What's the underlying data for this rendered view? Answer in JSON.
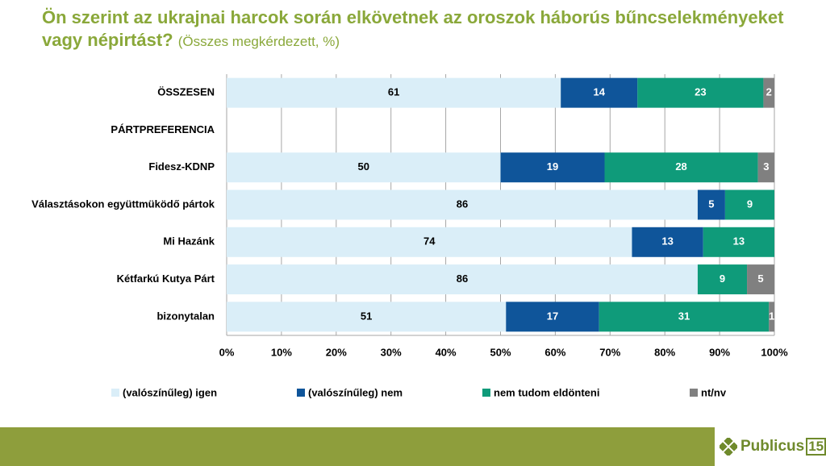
{
  "chart_data": {
    "type": "stacked-bar-horizontal",
    "title": "Ön szerint az ukrajnai harcok során elkövetnek az oroszok háborús bűncselekményeket vagy népirtást?",
    "subtitle": "(Összes megkérdezett, %)",
    "categories": [
      "ÖSSZESEN",
      "PÁRTPREFERENCIA",
      "Fidesz-KDNP",
      "Választásokon együttmüködő pártok",
      "Mi Hazánk",
      "Kétfarkú Kutya Párt",
      "bizonytalan"
    ],
    "series": [
      {
        "name": "(valószínűleg) igen",
        "color": "#daeef8",
        "values": [
          61,
          null,
          50,
          86,
          74,
          86,
          51
        ]
      },
      {
        "name": "(valószínűleg) nem",
        "color": "#0f559a",
        "values": [
          14,
          null,
          19,
          5,
          13,
          null,
          17
        ]
      },
      {
        "name": "nem tudom eldönteni",
        "color": "#0f9b7a",
        "values": [
          23,
          null,
          28,
          9,
          13,
          9,
          31
        ]
      },
      {
        "name": "nt/nv",
        "color": "#808080",
        "values": [
          2,
          null,
          3,
          null,
          null,
          5,
          1
        ]
      }
    ],
    "xlim": [
      0,
      100
    ],
    "xticks": [
      {
        "value": 0,
        "label": "0%"
      },
      {
        "value": 10,
        "label": "10%"
      },
      {
        "value": 20,
        "label": "20%"
      },
      {
        "value": 30,
        "label": "30%"
      },
      {
        "value": 40,
        "label": "40%"
      },
      {
        "value": 50,
        "label": "50%"
      },
      {
        "value": 60,
        "label": "60%"
      },
      {
        "value": 70,
        "label": "70%"
      },
      {
        "value": 80,
        "label": "80%"
      },
      {
        "value": 90,
        "label": "90%"
      },
      {
        "value": 100,
        "label": "100%"
      }
    ],
    "grid": true
  },
  "logo": {
    "name": "Publicus",
    "number": "15"
  }
}
